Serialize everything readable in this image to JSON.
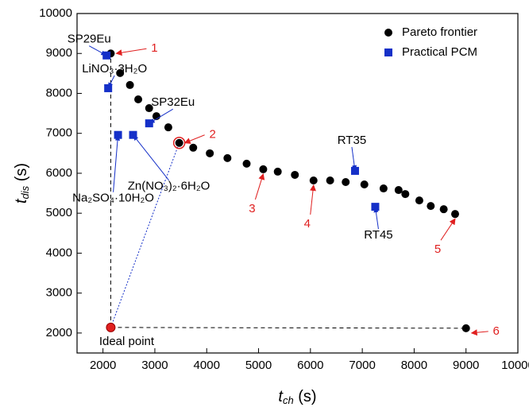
{
  "chart_data": {
    "type": "scatter",
    "x_label": [
      "t",
      "ch",
      " (s)"
    ],
    "y_label": [
      "t",
      "dis",
      " (s)"
    ],
    "xlim": [
      1500,
      10000
    ],
    "xticks": [
      2000,
      3000,
      4000,
      5000,
      6000,
      7000,
      8000,
      9000,
      10000
    ],
    "ylim": [
      1500,
      10000
    ],
    "yticks": [
      2000,
      3000,
      4000,
      5000,
      6000,
      7000,
      8000,
      9000,
      10000
    ],
    "legend": "top-right",
    "series": [
      {
        "name": "Pareto frontier",
        "color": "#000000",
        "marker": "circle",
        "x": [
          2150,
          2330,
          2520,
          2680,
          2890,
          3030,
          3260,
          3470,
          3740,
          4060,
          4400,
          4770,
          5090,
          5370,
          5700,
          6060,
          6380,
          6680,
          7040,
          7410,
          7700,
          7830,
          8100,
          8320,
          8570,
          8790
        ],
        "values": [
          9000,
          8510,
          8210,
          7850,
          7630,
          7430,
          7150,
          6760,
          6640,
          6500,
          6380,
          6240,
          6100,
          6040,
          5960,
          5820,
          5820,
          5780,
          5720,
          5620,
          5580,
          5480,
          5320,
          5180,
          5100,
          4980
        ]
      },
      {
        "name": "Practical PCM",
        "color": "#1530c8",
        "marker": "square",
        "x": [
          2070,
          2100,
          2890,
          2290,
          2580,
          6860,
          7250
        ],
        "values": [
          8950,
          8130,
          7250,
          6960,
          6960,
          6060,
          5160
        ],
        "labels": [
          "SP29Eu",
          "LiNO₃·3H₂O",
          "SP32Eu",
          "Na₂SO₄·10H₂O",
          "Zn(NO₃)₂·6H₂O",
          "RT35",
          "RT45"
        ]
      }
    ],
    "ideal_point": {
      "label": "Ideal point",
      "x": 2150,
      "y": 2140,
      "color": "#e02020"
    },
    "end_point": {
      "x": 9000,
      "y": 2120,
      "color": "#000000"
    },
    "annotations": [
      "1",
      "2",
      "3",
      "4",
      "5",
      "6"
    ]
  }
}
